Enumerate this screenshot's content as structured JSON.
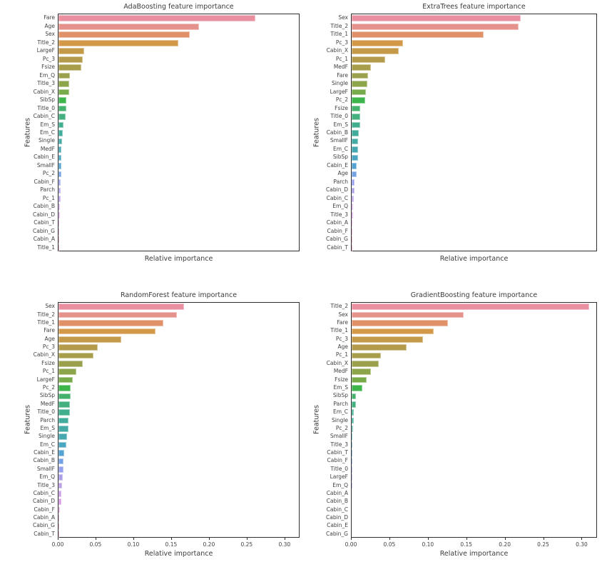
{
  "figure": {
    "background": "#ffffff",
    "text_color": "#3b3b3b",
    "tick_text_color": "#424242",
    "spine_color": "#2f2f2f",
    "palette": [
      "#ea8fa0",
      "#e5918c",
      "#e09168",
      "#d49849",
      "#c49a48",
      "#b39b4b",
      "#a89d4b",
      "#9aa04b",
      "#8ca44a",
      "#77aa48",
      "#3eb54b",
      "#44b26d",
      "#44b080",
      "#41ae8e",
      "#41ac9b",
      "#43aaa5",
      "#45a8b0",
      "#49a5c0",
      "#54a2d2",
      "#74a0e4",
      "#95a1ec",
      "#a99fe8",
      "#b99de9",
      "#ca9be9",
      "#d898e4",
      "#e294da",
      "#e78fcb",
      "#e98cb9",
      "#ea8aa8"
    ]
  },
  "chart_data": [
    {
      "type": "bar",
      "orientation": "horizontal",
      "title": "AdaBoosting feature importance",
      "xlabel": "Relative importance",
      "ylabel": "Features",
      "xlim": [
        0,
        0.32
      ],
      "xticks": [
        0,
        0.05,
        0.1,
        0.15,
        0.2,
        0.25,
        0.3
      ],
      "xticks_visible": false,
      "grid": false,
      "categories": [
        "Fare",
        "Age",
        "Sex",
        "Title_2",
        "LargeF",
        "Pc_3",
        "Fsize",
        "Em_Q",
        "Title_3",
        "Cabin_X",
        "SibSp",
        "Title_0",
        "Cabin_C",
        "Em_S",
        "Em_C",
        "Single",
        "MedF",
        "Cabin_E",
        "SmallF",
        "Pc_2",
        "Cabin_F",
        "Parch",
        "Pc_1",
        "Cabin_B",
        "Cabin_D",
        "Cabin_T",
        "Cabin_G",
        "Cabin_A",
        "Title_1"
      ],
      "values": [
        0.261,
        0.186,
        0.174,
        0.159,
        0.034,
        0.032,
        0.03,
        0.015,
        0.0145,
        0.014,
        0.0107,
        0.0101,
        0.0092,
        0.0063,
        0.0057,
        0.0047,
        0.0042,
        0.004,
        0.0038,
        0.0036,
        0.0028,
        0.0026,
        0.0024,
        0.0021,
        0.0019,
        0.0006,
        0.0005,
        0.0003,
        0.0001
      ]
    },
    {
      "type": "bar",
      "orientation": "horizontal",
      "title": "ExtraTrees feature importance",
      "xlabel": "Relative importance",
      "ylabel": "Features",
      "xlim": [
        0,
        0.32
      ],
      "xticks": [
        0,
        0.05,
        0.1,
        0.15,
        0.2,
        0.25,
        0.3
      ],
      "xticks_visible": false,
      "grid": false,
      "categories": [
        "Sex",
        "Title_2",
        "Title_1",
        "Pc_3",
        "Cabin_X",
        "Pc_1",
        "MedF",
        "Fare",
        "Single",
        "LargeF",
        "Pc_2",
        "Fsize",
        "Title_0",
        "Em_S",
        "Cabin_B",
        "SmallF",
        "Em_C",
        "SibSp",
        "Cabin_E",
        "Age",
        "Parch",
        "Cabin_D",
        "Cabin_C",
        "Em_Q",
        "Title_3",
        "Cabin_A",
        "Cabin_F",
        "Cabin_G",
        "Cabin_T"
      ],
      "values": [
        0.22,
        0.217,
        0.172,
        0.067,
        0.061,
        0.044,
        0.025,
        0.0215,
        0.0202,
        0.019,
        0.0174,
        0.0115,
        0.0112,
        0.011,
        0.0092,
        0.0085,
        0.0083,
        0.0079,
        0.0069,
        0.0064,
        0.0038,
        0.0036,
        0.0028,
        0.0016,
        0.0015,
        0.0004,
        0.0003,
        0.0002,
        0.0001
      ]
    },
    {
      "type": "bar",
      "orientation": "horizontal",
      "title": "RandomForest feature importance",
      "xlabel": "Relative importance",
      "ylabel": "Features",
      "xlim": [
        0,
        0.32
      ],
      "xticks": [
        0,
        0.05,
        0.1,
        0.15,
        0.2,
        0.25,
        0.3
      ],
      "xticks_visible": true,
      "grid": false,
      "categories": [
        "Sex",
        "Title_2",
        "Title_1",
        "Fare",
        "Age",
        "Pc_3",
        "Cabin_X",
        "Fsize",
        "Pc_1",
        "LargeF",
        "Pc_2",
        "SibSp",
        "MedF",
        "Title_0",
        "Parch",
        "Em_S",
        "Single",
        "Em_C",
        "Cabin_E",
        "Cabin_B",
        "SmallF",
        "Em_Q",
        "Title_3",
        "Cabin_C",
        "Cabin_D",
        "Cabin_F",
        "Cabin_A",
        "Cabin_G",
        "Cabin_T"
      ],
      "values": [
        0.166,
        0.157,
        0.139,
        0.128,
        0.083,
        0.052,
        0.046,
        0.032,
        0.024,
        0.019,
        0.0165,
        0.016,
        0.0155,
        0.015,
        0.0135,
        0.013,
        0.011,
        0.01,
        0.0072,
        0.007,
        0.0062,
        0.006,
        0.005,
        0.0042,
        0.004,
        0.0016,
        0.0013,
        0.0003,
        0.0001
      ]
    },
    {
      "type": "bar",
      "orientation": "horizontal",
      "title": "GradientBoosting feature importance",
      "xlabel": "Relative importance",
      "ylabel": "Features",
      "xlim": [
        0,
        0.32
      ],
      "xticks": [
        0,
        0.05,
        0.1,
        0.15,
        0.2,
        0.25,
        0.3
      ],
      "xticks_visible": true,
      "grid": false,
      "categories": [
        "Title_2",
        "Sex",
        "Fare",
        "Title_1",
        "Pc_3",
        "Age",
        "Pc_1",
        "Cabin_X",
        "MedF",
        "Fsize",
        "Em_S",
        "SibSp",
        "Parch",
        "Em_C",
        "Single",
        "Pc_2",
        "SmallF",
        "Title_3",
        "Cabin_T",
        "Cabin_F",
        "Title_0",
        "LargeF",
        "Em_Q",
        "Cabin_A",
        "Cabin_B",
        "Cabin_C",
        "Cabin_D",
        "Cabin_E",
        "Cabin_G"
      ],
      "values": [
        0.309,
        0.146,
        0.125,
        0.107,
        0.093,
        0.071,
        0.038,
        0.0354,
        0.0253,
        0.0193,
        0.0136,
        0.0055,
        0.0053,
        0.0028,
        0.0027,
        0.0022,
        0.0008,
        0.0004,
        0.0002,
        0.0002,
        0.0001,
        0.0001,
        0.0001,
        0,
        0,
        0,
        0,
        0,
        0
      ]
    }
  ]
}
